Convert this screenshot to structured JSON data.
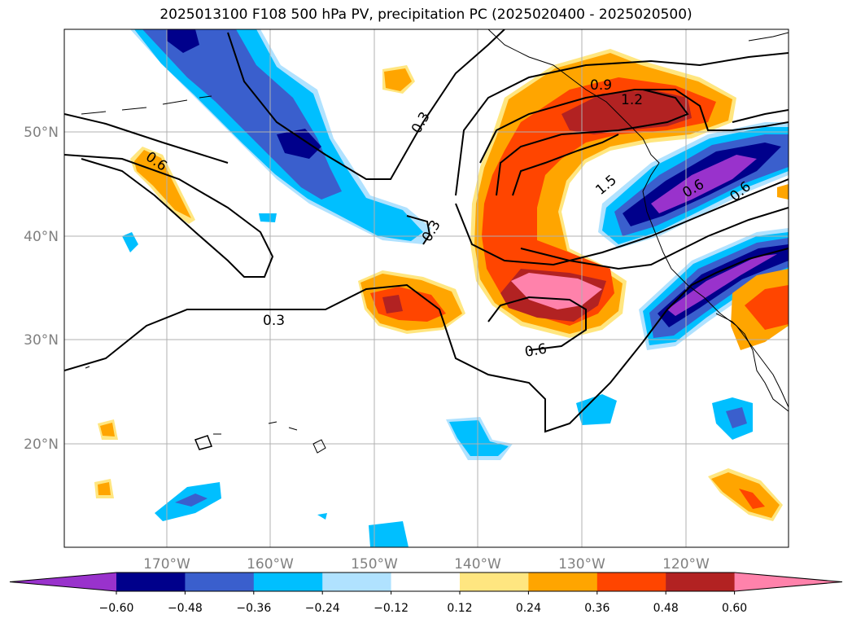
{
  "title": "2025013100 F108 500 hPa PV, precipitation PC (2025020400 - 2025020500)",
  "map": {
    "lon_ticks": [
      "170°W",
      "160°W",
      "150°W",
      "140°W",
      "130°W",
      "120°W"
    ],
    "lat_ticks": [
      "50°N",
      "40°N",
      "30°N",
      "20°N"
    ],
    "gridlines": true
  },
  "contour_labels": [
    "0.3",
    "0.3",
    "0.3",
    "0.6",
    "0.6",
    "0.6",
    "0.9",
    "1.2",
    "1.5",
    "0.6"
  ],
  "colorbar": {
    "ticks": [
      "−0.60",
      "−0.48",
      "−0.36",
      "−0.24",
      "−0.12",
      "0.12",
      "0.24",
      "0.36",
      "0.48",
      "0.60"
    ],
    "colors": [
      "#9932cc",
      "#00008b",
      "#3a5fcd",
      "#00bfff",
      "#b0e2ff",
      "#ffffff",
      "#ffe680",
      "#ffa500",
      "#ff4500",
      "#b22222",
      "#ff82ab"
    ]
  }
}
